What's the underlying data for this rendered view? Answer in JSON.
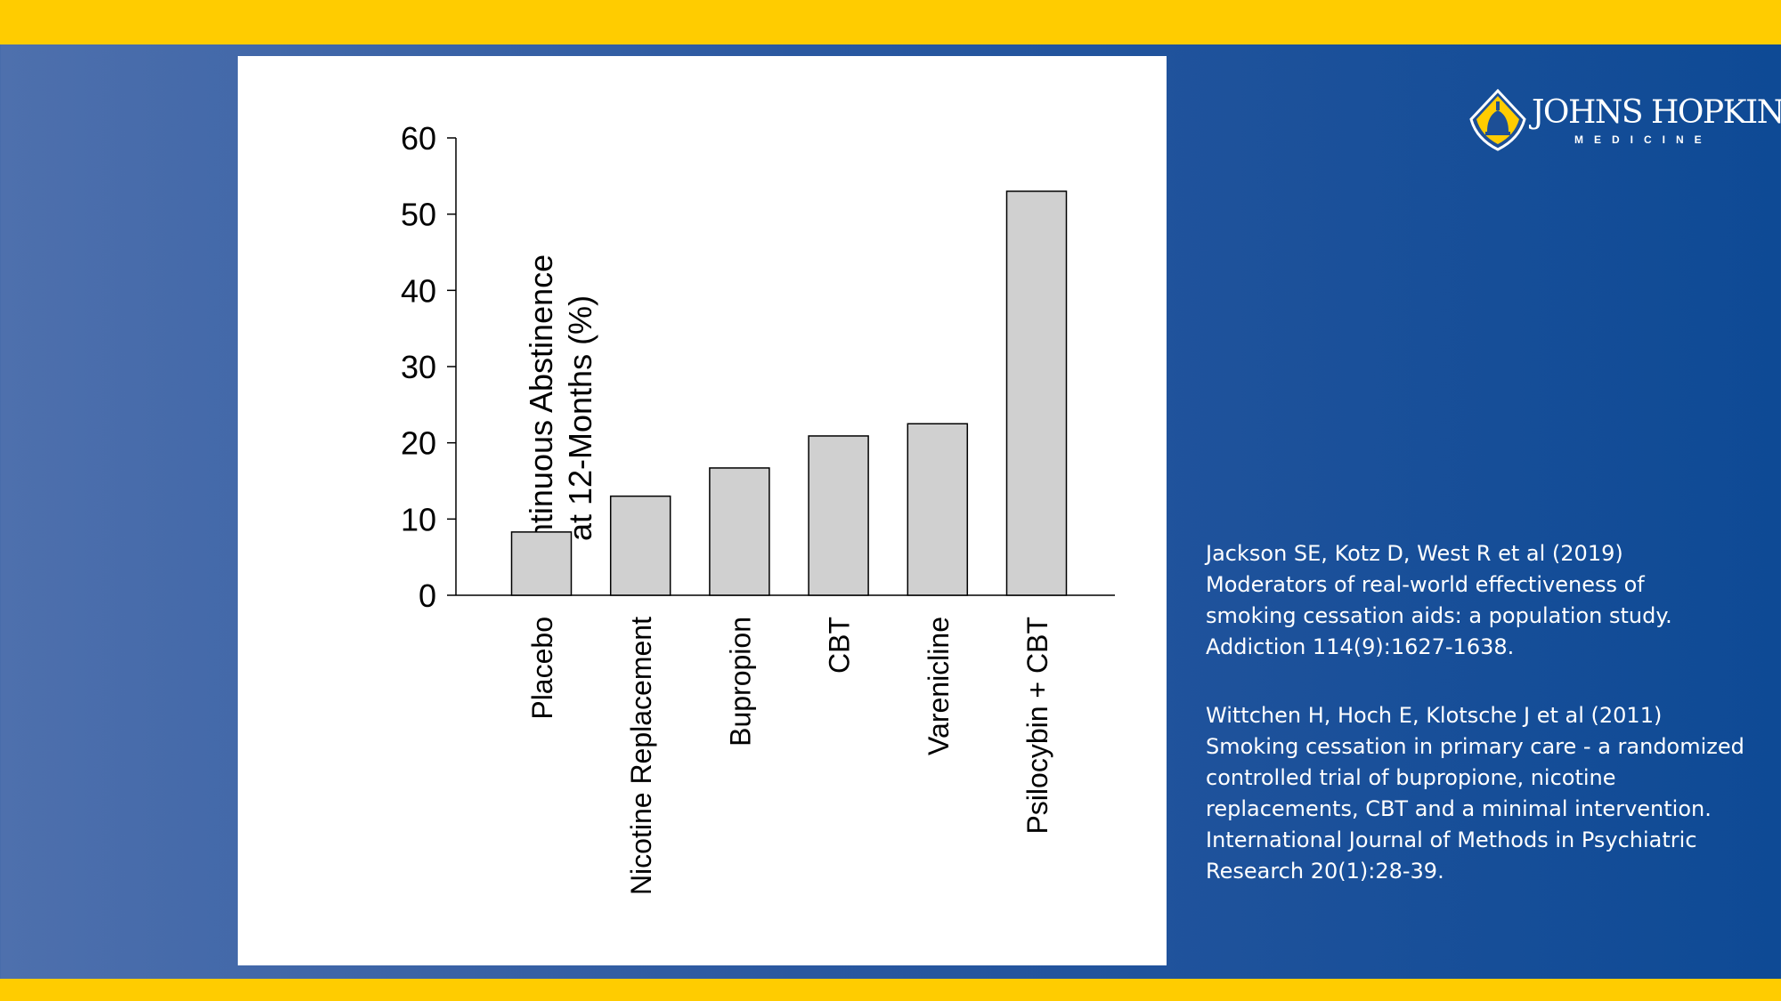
{
  "brand": {
    "logo_text": "JOHNS HOPKINS",
    "logo_subtext": "MEDICINE",
    "colors": {
      "gold": "#ffcc00",
      "blue": "#1d4f96",
      "bar_fill": "#d0d0d0"
    }
  },
  "chart_data": {
    "type": "bar",
    "title": "",
    "xlabel": "",
    "ylabel_lines": [
      "Continuous Abstinence",
      "at 12-Months (%)"
    ],
    "categories": [
      "Placebo",
      "Nicotine Replacement",
      "Bupropion",
      "CBT",
      "Varenicline",
      "Psilocybin + CBT"
    ],
    "values": [
      8.3,
      13,
      16.7,
      20.9,
      22.5,
      53
    ],
    "ylim": [
      0,
      60
    ],
    "yticks": [
      0,
      10,
      20,
      30,
      40,
      50,
      60
    ],
    "grid": false,
    "legend": "none"
  },
  "references": [
    {
      "lines": [
        "Jackson SE, Kotz D, West R et al (2019)",
        "Moderators of real-world effectiveness of",
        "smoking cessation aids: a population study.",
        "Addiction 114(9):1627-1638."
      ]
    },
    {
      "lines": [
        "Wittchen H, Hoch E, Klotsche J et al (2011)",
        "Smoking cessation in primary care - a randomized",
        "controlled trial of bupropione, nicotine",
        "replacements, CBT and a minimal intervention.",
        "International Journal of Methods in Psychiatric",
        "Research 20(1):28-39."
      ]
    }
  ]
}
